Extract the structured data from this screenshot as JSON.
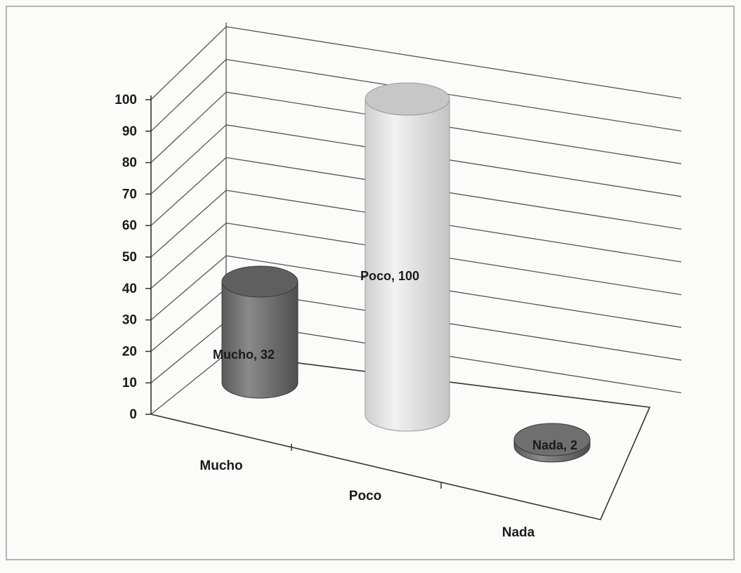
{
  "chart_data": {
    "type": "bar",
    "style": "3d-cylinder",
    "categories": [
      "Mucho",
      "Poco",
      "Nada"
    ],
    "values": [
      32,
      100,
      2
    ],
    "data_labels": [
      "Mucho, 32",
      "Poco, 100",
      "Nada, 2"
    ],
    "ylim": [
      0,
      100
    ],
    "yticks": [
      "0",
      "10",
      "20",
      "30",
      "40",
      "50",
      "60",
      "70",
      "80",
      "90",
      "100"
    ],
    "grid": true,
    "legend": "none",
    "colors": {
      "Mucho": "#6e6e6e",
      "Poco": "#dedede",
      "Nada": "#7a7a7a"
    }
  }
}
